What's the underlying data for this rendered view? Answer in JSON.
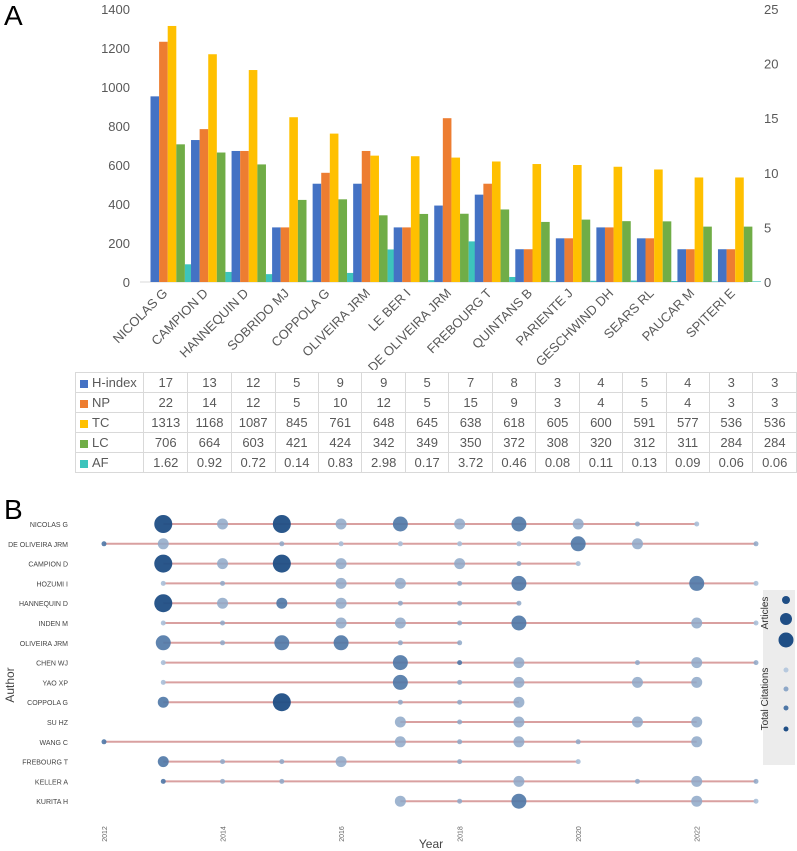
{
  "panelA": {
    "letter": "A",
    "chart_data": {
      "type": "bar",
      "categories": [
        "NICOLAS G",
        "CAMPION D",
        "HANNEQUIN D",
        "SOBRIDO MJ",
        "COPPOLA G",
        "OLIVEIRA JRM",
        "LE BER I",
        "DE OLIVEIRA JRM",
        "FREBOURG T",
        "QUINTANS B",
        "PARIENTE J",
        "GESCHWIND DH",
        "SEARS RL",
        "PAUCAR M",
        "SPITERI E"
      ],
      "left_axis": {
        "ylim": [
          0,
          1400
        ],
        "ticks": [
          "0",
          "200",
          "400",
          "600",
          "800",
          "1000",
          "1200",
          "1400"
        ]
      },
      "right_axis": {
        "ylim": [
          0,
          25
        ],
        "ticks": [
          "0",
          "5",
          "10",
          "15",
          "20",
          "25"
        ]
      },
      "series": [
        {
          "name": "H-index",
          "axis": "right",
          "color": "#4472c4",
          "values": [
            17,
            13,
            12,
            5,
            9,
            9,
            5,
            7,
            8,
            3,
            4,
            5,
            4,
            3,
            3
          ]
        },
        {
          "name": "NP",
          "axis": "right",
          "color": "#ed7d31",
          "values": [
            22,
            14,
            12,
            5,
            10,
            12,
            5,
            15,
            9,
            3,
            4,
            5,
            4,
            3,
            3
          ]
        },
        {
          "name": "TC",
          "axis": "left",
          "color": "#ffc000",
          "values": [
            1313,
            1168,
            1087,
            845,
            761,
            648,
            645,
            638,
            618,
            605,
            600,
            591,
            577,
            536,
            536
          ]
        },
        {
          "name": "LC",
          "axis": "left",
          "color": "#70ad47",
          "values": [
            706,
            664,
            603,
            421,
            424,
            342,
            349,
            350,
            372,
            308,
            320,
            312,
            311,
            284,
            284
          ]
        },
        {
          "name": "AF",
          "axis": "right",
          "color": "#3dc4bc",
          "values": [
            1.62,
            0.92,
            0.72,
            0.14,
            0.83,
            2.98,
            0.17,
            3.72,
            0.46,
            0.08,
            0.11,
            0.13,
            0.09,
            0.06,
            0.06
          ]
        }
      ]
    },
    "table": {
      "rows": [
        {
          "name": "H-index",
          "color": "#4472c4",
          "cells": [
            "17",
            "13",
            "12",
            "5",
            "9",
            "9",
            "5",
            "7",
            "8",
            "3",
            "4",
            "5",
            "4",
            "3",
            "3"
          ]
        },
        {
          "name": "NP",
          "color": "#ed7d31",
          "cells": [
            "22",
            "14",
            "12",
            "5",
            "10",
            "12",
            "5",
            "15",
            "9",
            "3",
            "4",
            "5",
            "4",
            "3",
            "3"
          ]
        },
        {
          "name": "TC",
          "color": "#ffc000",
          "cells": [
            "1313",
            "1168",
            "1087",
            "845",
            "761",
            "648",
            "645",
            "638",
            "618",
            "605",
            "600",
            "591",
            "577",
            "536",
            "536"
          ]
        },
        {
          "name": "LC",
          "color": "#70ad47",
          "cells": [
            "706",
            "664",
            "603",
            "421",
            "424",
            "342",
            "349",
            "350",
            "372",
            "308",
            "320",
            "312",
            "311",
            "284",
            "284"
          ]
        },
        {
          "name": "AF",
          "color": "#3dc4bc",
          "cells": [
            "1.62",
            "0.92",
            "0.72",
            "0.14",
            "0.83",
            "2.98",
            "0.17",
            "3.72",
            "0.46",
            "0.08",
            "0.11",
            "0.13",
            "0.09",
            "0.06",
            "0.06"
          ]
        }
      ]
    }
  },
  "panelB": {
    "letter": "B",
    "chart_data": {
      "type": "scatter",
      "xlabel": "Year",
      "ylabel": "Author",
      "xlim": [
        2012,
        2023
      ],
      "x_ticks": [
        "2012",
        "2014",
        "2016",
        "2018",
        "2020",
        "2022"
      ],
      "authors": [
        {
          "name": "NICOLAS G",
          "span": [
            2013,
            2022
          ],
          "points": [
            [
              2013,
              4,
              3
            ],
            [
              2014,
              2,
              1
            ],
            [
              2015,
              4,
              3
            ],
            [
              2016,
              2,
              1
            ],
            [
              2017,
              3,
              1
            ],
            [
              2018,
              2,
              1
            ],
            [
              2019,
              3,
              2
            ],
            [
              2020,
              2,
              1
            ],
            [
              2021,
              1,
              2
            ],
            [
              2022,
              1,
              1
            ]
          ]
        },
        {
          "name": "DE OLIVEIRA JRM",
          "span": [
            2012,
            2023
          ],
          "points": [
            [
              2012,
              1,
              3
            ],
            [
              2013,
              2,
              2
            ],
            [
              2015,
              1,
              2
            ],
            [
              2016,
              1,
              1
            ],
            [
              2017,
              1,
              1
            ],
            [
              2018,
              1,
              1
            ],
            [
              2019,
              1,
              1
            ],
            [
              2020,
              3,
              1
            ],
            [
              2021,
              2,
              1
            ],
            [
              2023,
              1,
              2
            ]
          ]
        },
        {
          "name": "CAMPION D",
          "span": [
            2013,
            2020
          ],
          "points": [
            [
              2013,
              4,
              3
            ],
            [
              2014,
              2,
              1
            ],
            [
              2015,
              4,
              3
            ],
            [
              2016,
              2,
              1
            ],
            [
              2018,
              2,
              2
            ],
            [
              2019,
              1,
              2
            ],
            [
              2020,
              1,
              1
            ]
          ]
        },
        {
          "name": "HOZUMI I",
          "span": [
            2013,
            2023
          ],
          "points": [
            [
              2013,
              1,
              1
            ],
            [
              2014,
              1,
              2
            ],
            [
              2016,
              2,
              1
            ],
            [
              2017,
              2,
              1
            ],
            [
              2018,
              1,
              2
            ],
            [
              2019,
              3,
              1
            ],
            [
              2022,
              3,
              1
            ],
            [
              2023,
              1,
              1
            ]
          ]
        },
        {
          "name": "HANNEQUIN D",
          "span": [
            2013,
            2019
          ],
          "points": [
            [
              2013,
              4,
              3
            ],
            [
              2014,
              2,
              1
            ],
            [
              2015,
              2,
              3
            ],
            [
              2016,
              2,
              1
            ],
            [
              2017,
              1,
              2
            ],
            [
              2018,
              1,
              2
            ],
            [
              2019,
              1,
              2
            ]
          ]
        },
        {
          "name": "INDEN M",
          "span": [
            2013,
            2023
          ],
          "points": [
            [
              2013,
              1,
              1
            ],
            [
              2014,
              1,
              2
            ],
            [
              2016,
              2,
              1
            ],
            [
              2017,
              2,
              1
            ],
            [
              2018,
              1,
              2
            ],
            [
              2019,
              3,
              1
            ],
            [
              2022,
              2,
              1
            ],
            [
              2023,
              1,
              1
            ]
          ]
        },
        {
          "name": "OLIVEIRA JRM",
          "span": [
            2013,
            2018
          ],
          "points": [
            [
              2013,
              3,
              2
            ],
            [
              2014,
              1,
              2
            ],
            [
              2015,
              3,
              3
            ],
            [
              2016,
              3,
              1
            ],
            [
              2017,
              1,
              2
            ],
            [
              2018,
              1,
              2
            ]
          ]
        },
        {
          "name": "CHEN WJ",
          "span": [
            2013,
            2023
          ],
          "points": [
            [
              2013,
              1,
              1
            ],
            [
              2017,
              3,
              1
            ],
            [
              2018,
              1,
              3
            ],
            [
              2019,
              2,
              2
            ],
            [
              2021,
              1,
              2
            ],
            [
              2022,
              2,
              1
            ],
            [
              2023,
              1,
              2
            ]
          ]
        },
        {
          "name": "YAO XP",
          "span": [
            2013,
            2022
          ],
          "points": [
            [
              2013,
              1,
              1
            ],
            [
              2017,
              3,
              1
            ],
            [
              2018,
              1,
              2
            ],
            [
              2019,
              2,
              2
            ],
            [
              2021,
              2,
              1
            ],
            [
              2022,
              2,
              1
            ]
          ]
        },
        {
          "name": "COPPOLA G",
          "span": [
            2013,
            2019
          ],
          "points": [
            [
              2013,
              2,
              3
            ],
            [
              2015,
              4,
              4
            ],
            [
              2017,
              1,
              2
            ],
            [
              2018,
              1,
              2
            ],
            [
              2019,
              2,
              1
            ]
          ]
        },
        {
          "name": "SU HZ",
          "span": [
            2017,
            2022
          ],
          "points": [
            [
              2017,
              2,
              1
            ],
            [
              2018,
              1,
              2
            ],
            [
              2019,
              2,
              2
            ],
            [
              2021,
              2,
              1
            ],
            [
              2022,
              2,
              1
            ]
          ]
        },
        {
          "name": "WANG C",
          "span": [
            2012,
            2022
          ],
          "points": [
            [
              2012,
              1,
              3
            ],
            [
              2017,
              2,
              1
            ],
            [
              2018,
              1,
              2
            ],
            [
              2019,
              2,
              2
            ],
            [
              2020,
              1,
              2
            ],
            [
              2022,
              2,
              1
            ]
          ]
        },
        {
          "name": "FREBOURG T",
          "span": [
            2013,
            2020
          ],
          "points": [
            [
              2013,
              2,
              3
            ],
            [
              2014,
              1,
              2
            ],
            [
              2015,
              1,
              2
            ],
            [
              2016,
              2,
              1
            ],
            [
              2018,
              1,
              2
            ],
            [
              2020,
              1,
              1
            ]
          ]
        },
        {
          "name": "KELLER A",
          "span": [
            2013,
            2023
          ],
          "points": [
            [
              2013,
              1,
              3
            ],
            [
              2014,
              1,
              2
            ],
            [
              2015,
              1,
              2
            ],
            [
              2019,
              2,
              2
            ],
            [
              2021,
              1,
              2
            ],
            [
              2022,
              2,
              2
            ],
            [
              2023,
              1,
              2
            ]
          ]
        },
        {
          "name": "KURITA H",
          "span": [
            2017,
            2023
          ],
          "points": [
            [
              2017,
              2,
              1
            ],
            [
              2018,
              1,
              2
            ],
            [
              2019,
              3,
              1
            ],
            [
              2022,
              2,
              2
            ],
            [
              2023,
              1,
              1
            ]
          ]
        }
      ],
      "point_format": "[year, articles_level, citation_level]",
      "line_color": "#d9a0a0",
      "legend": {
        "articles_title": "Articles",
        "citations_title": "Total Citations"
      }
    }
  }
}
